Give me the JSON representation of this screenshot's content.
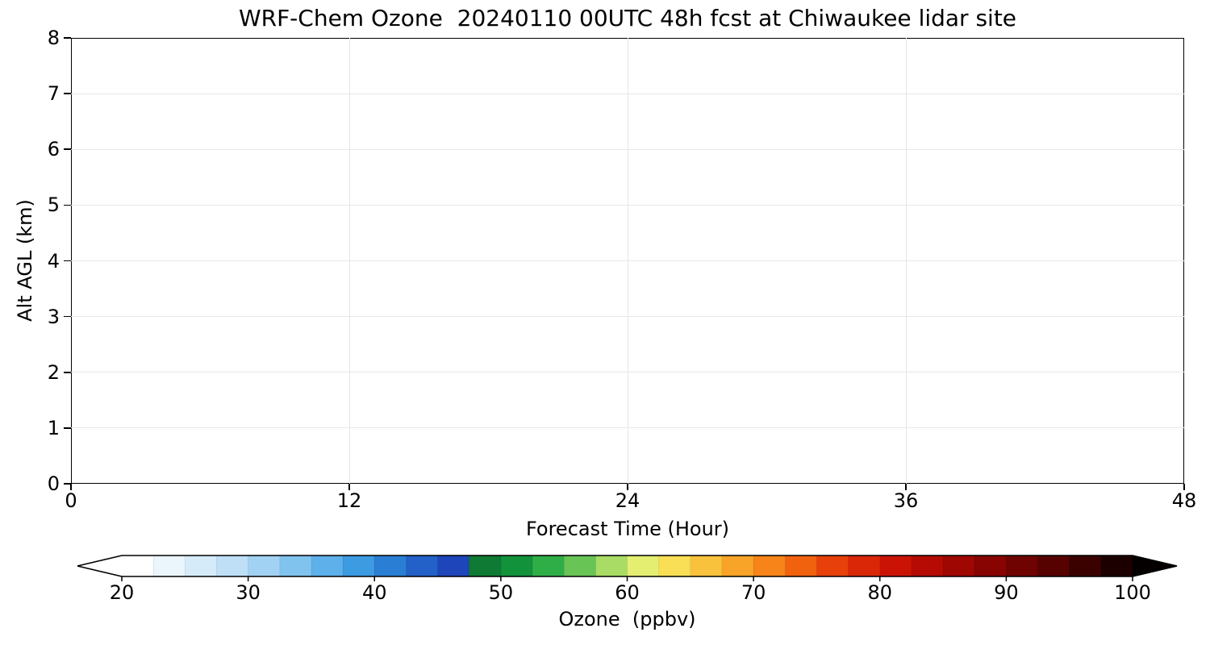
{
  "chart_data": {
    "type": "heatmap",
    "title": "WRF-Chem Ozone  20240110 00UTC 48h fcst at Chiwaukee lidar site",
    "xlabel": "Forecast Time (Hour)",
    "ylabel": "Alt AGL (km)",
    "xlim": [
      0,
      48
    ],
    "ylim": [
      0,
      8
    ],
    "x_ticks": [
      0,
      12,
      24,
      36,
      48
    ],
    "y_ticks": [
      0,
      1,
      2,
      3,
      4,
      5,
      6,
      7,
      8
    ],
    "grid": true,
    "series": [],
    "colorbar": {
      "label": "Ozone  (ppbv)",
      "ticks": [
        20,
        30,
        40,
        50,
        60,
        70,
        80,
        90,
        100
      ],
      "range": [
        20,
        100
      ],
      "extend": "both",
      "extend_left_color": "#ffffff",
      "extend_right_color": "#050000",
      "segment_colors": [
        "#ffffff",
        "#eaf5fc",
        "#d6ebfa",
        "#bfdff7",
        "#a2d2f3",
        "#81c3ef",
        "#5db0ea",
        "#3d9be2",
        "#2a7fd4",
        "#2361c8",
        "#1e45ba",
        "#0e7a33",
        "#13923c",
        "#2fae47",
        "#67c455",
        "#a8dc64",
        "#e4ef72",
        "#f8df55",
        "#f9c23c",
        "#f8a428",
        "#f68418",
        "#f1620f",
        "#e7400a",
        "#da2707",
        "#ca1305",
        "#b60a04",
        "#9f0703",
        "#870402",
        "#6e0301",
        "#550201",
        "#3a0100",
        "#1c0000"
      ]
    }
  }
}
